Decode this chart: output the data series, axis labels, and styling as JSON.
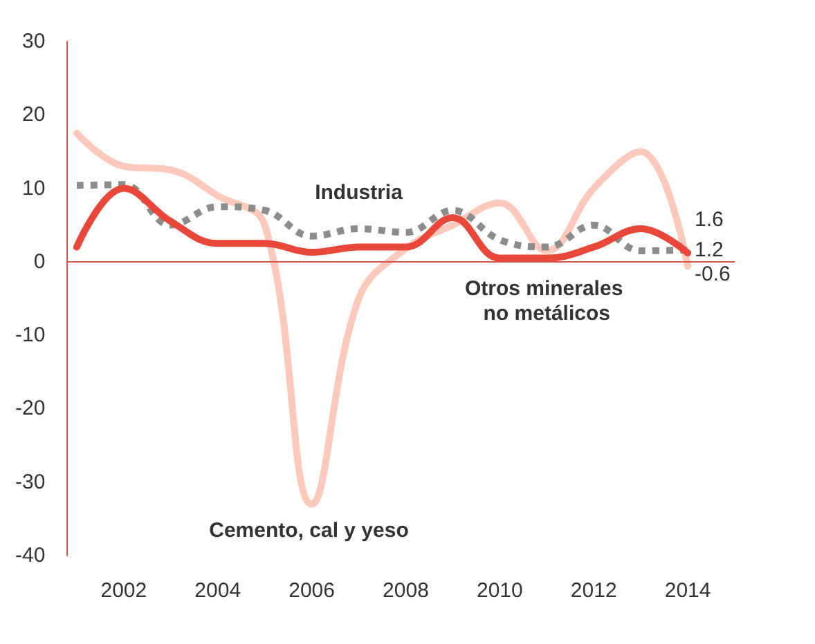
{
  "chart_data": {
    "type": "line",
    "x": [
      2001,
      2002,
      2003,
      2004,
      2005,
      2006,
      2007,
      2008,
      2009,
      2010,
      2011,
      2012,
      2013,
      2014
    ],
    "xlim": [
      2000.8,
      2015
    ],
    "xticks": [
      2002,
      2004,
      2006,
      2008,
      2010,
      2012,
      2014
    ],
    "ylim": [
      -40,
      30
    ],
    "yticks": [
      -40,
      -30,
      -20,
      -10,
      0,
      10,
      20,
      30
    ],
    "grid": false,
    "ref_lines": [
      {
        "axis": "y",
        "value": 0,
        "color": "#d9534f"
      }
    ],
    "legend": false,
    "marker": "none",
    "series": [
      {
        "name": "Cemento, cal y yeso",
        "color": "#fdc9bd",
        "line_style": "solid",
        "values": [
          17.5,
          13,
          12.5,
          9,
          5,
          -33,
          -5,
          1.8,
          5,
          8,
          1.5,
          10,
          15,
          -0.6
        ],
        "value_labels": [
          null,
          null,
          null,
          null,
          null,
          null,
          null,
          null,
          null,
          null,
          null,
          null,
          null,
          "-0.6"
        ]
      },
      {
        "name": "Industria",
        "color": "#8c8c8c",
        "line_style": "dotted",
        "values": [
          10.4,
          10.5,
          5,
          7.5,
          7,
          3.5,
          4.5,
          4,
          7,
          3,
          2,
          5,
          1.5,
          1.6
        ],
        "value_labels": [
          null,
          null,
          null,
          null,
          null,
          null,
          null,
          null,
          null,
          null,
          null,
          null,
          null,
          "1.6"
        ]
      },
      {
        "name": "Otros minerales no metálicos",
        "color": "#e8473a",
        "line_style": "solid",
        "values": [
          2,
          10,
          5.5,
          2.5,
          2.5,
          1.3,
          2,
          2,
          6,
          0.5,
          0.5,
          2,
          4.5,
          1.2
        ],
        "value_labels": [
          null,
          null,
          null,
          null,
          null,
          null,
          null,
          null,
          null,
          null,
          null,
          null,
          null,
          "1.2"
        ]
      }
    ]
  }
}
